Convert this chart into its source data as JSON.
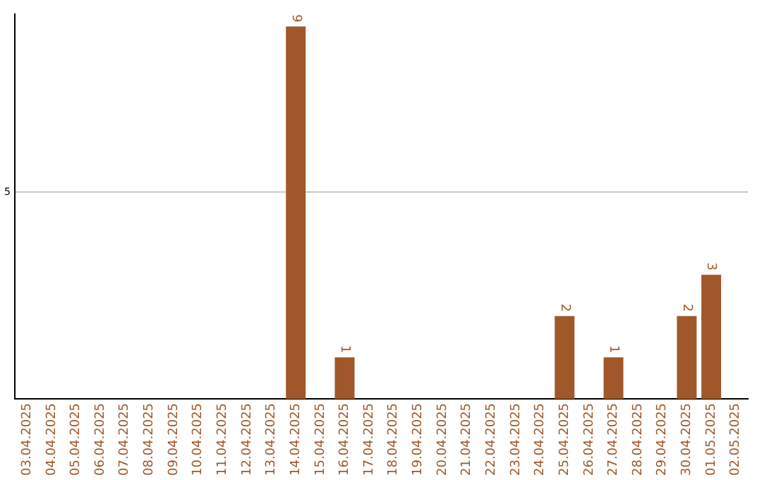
{
  "chart_data": {
    "type": "bar",
    "categories": [
      "03.04.2025",
      "04.04.2025",
      "05.04.2025",
      "06.04.2025",
      "07.04.2025",
      "08.04.2025",
      "09.04.2025",
      "10.04.2025",
      "11.04.2025",
      "12.04.2025",
      "13.04.2025",
      "14.04.2025",
      "15.04.2025",
      "16.04.2025",
      "17.04.2025",
      "18.04.2025",
      "19.04.2025",
      "20.04.2025",
      "21.04.2025",
      "22.04.2025",
      "23.04.2025",
      "24.04.2025",
      "25.04.2025",
      "26.04.2025",
      "27.04.2025",
      "28.04.2025",
      "29.04.2025",
      "30.04.2025",
      "01.05.2025",
      "02.05.2025"
    ],
    "values": [
      0,
      0,
      0,
      0,
      0,
      0,
      0,
      0,
      0,
      0,
      0,
      9,
      0,
      1,
      0,
      0,
      0,
      0,
      0,
      0,
      0,
      0,
      2,
      0,
      1,
      0,
      0,
      2,
      3,
      0
    ],
    "color": "#a0582a",
    "value_labels": [
      null,
      null,
      null,
      null,
      null,
      null,
      null,
      null,
      null,
      null,
      null,
      "9",
      null,
      "1",
      null,
      null,
      null,
      null,
      null,
      null,
      null,
      null,
      "2",
      null,
      "1",
      null,
      null,
      "2",
      "3",
      null
    ],
    "ylim": [
      0,
      9.3
    ],
    "yticks": [
      5
    ],
    "grid": "y",
    "legend": false
  }
}
